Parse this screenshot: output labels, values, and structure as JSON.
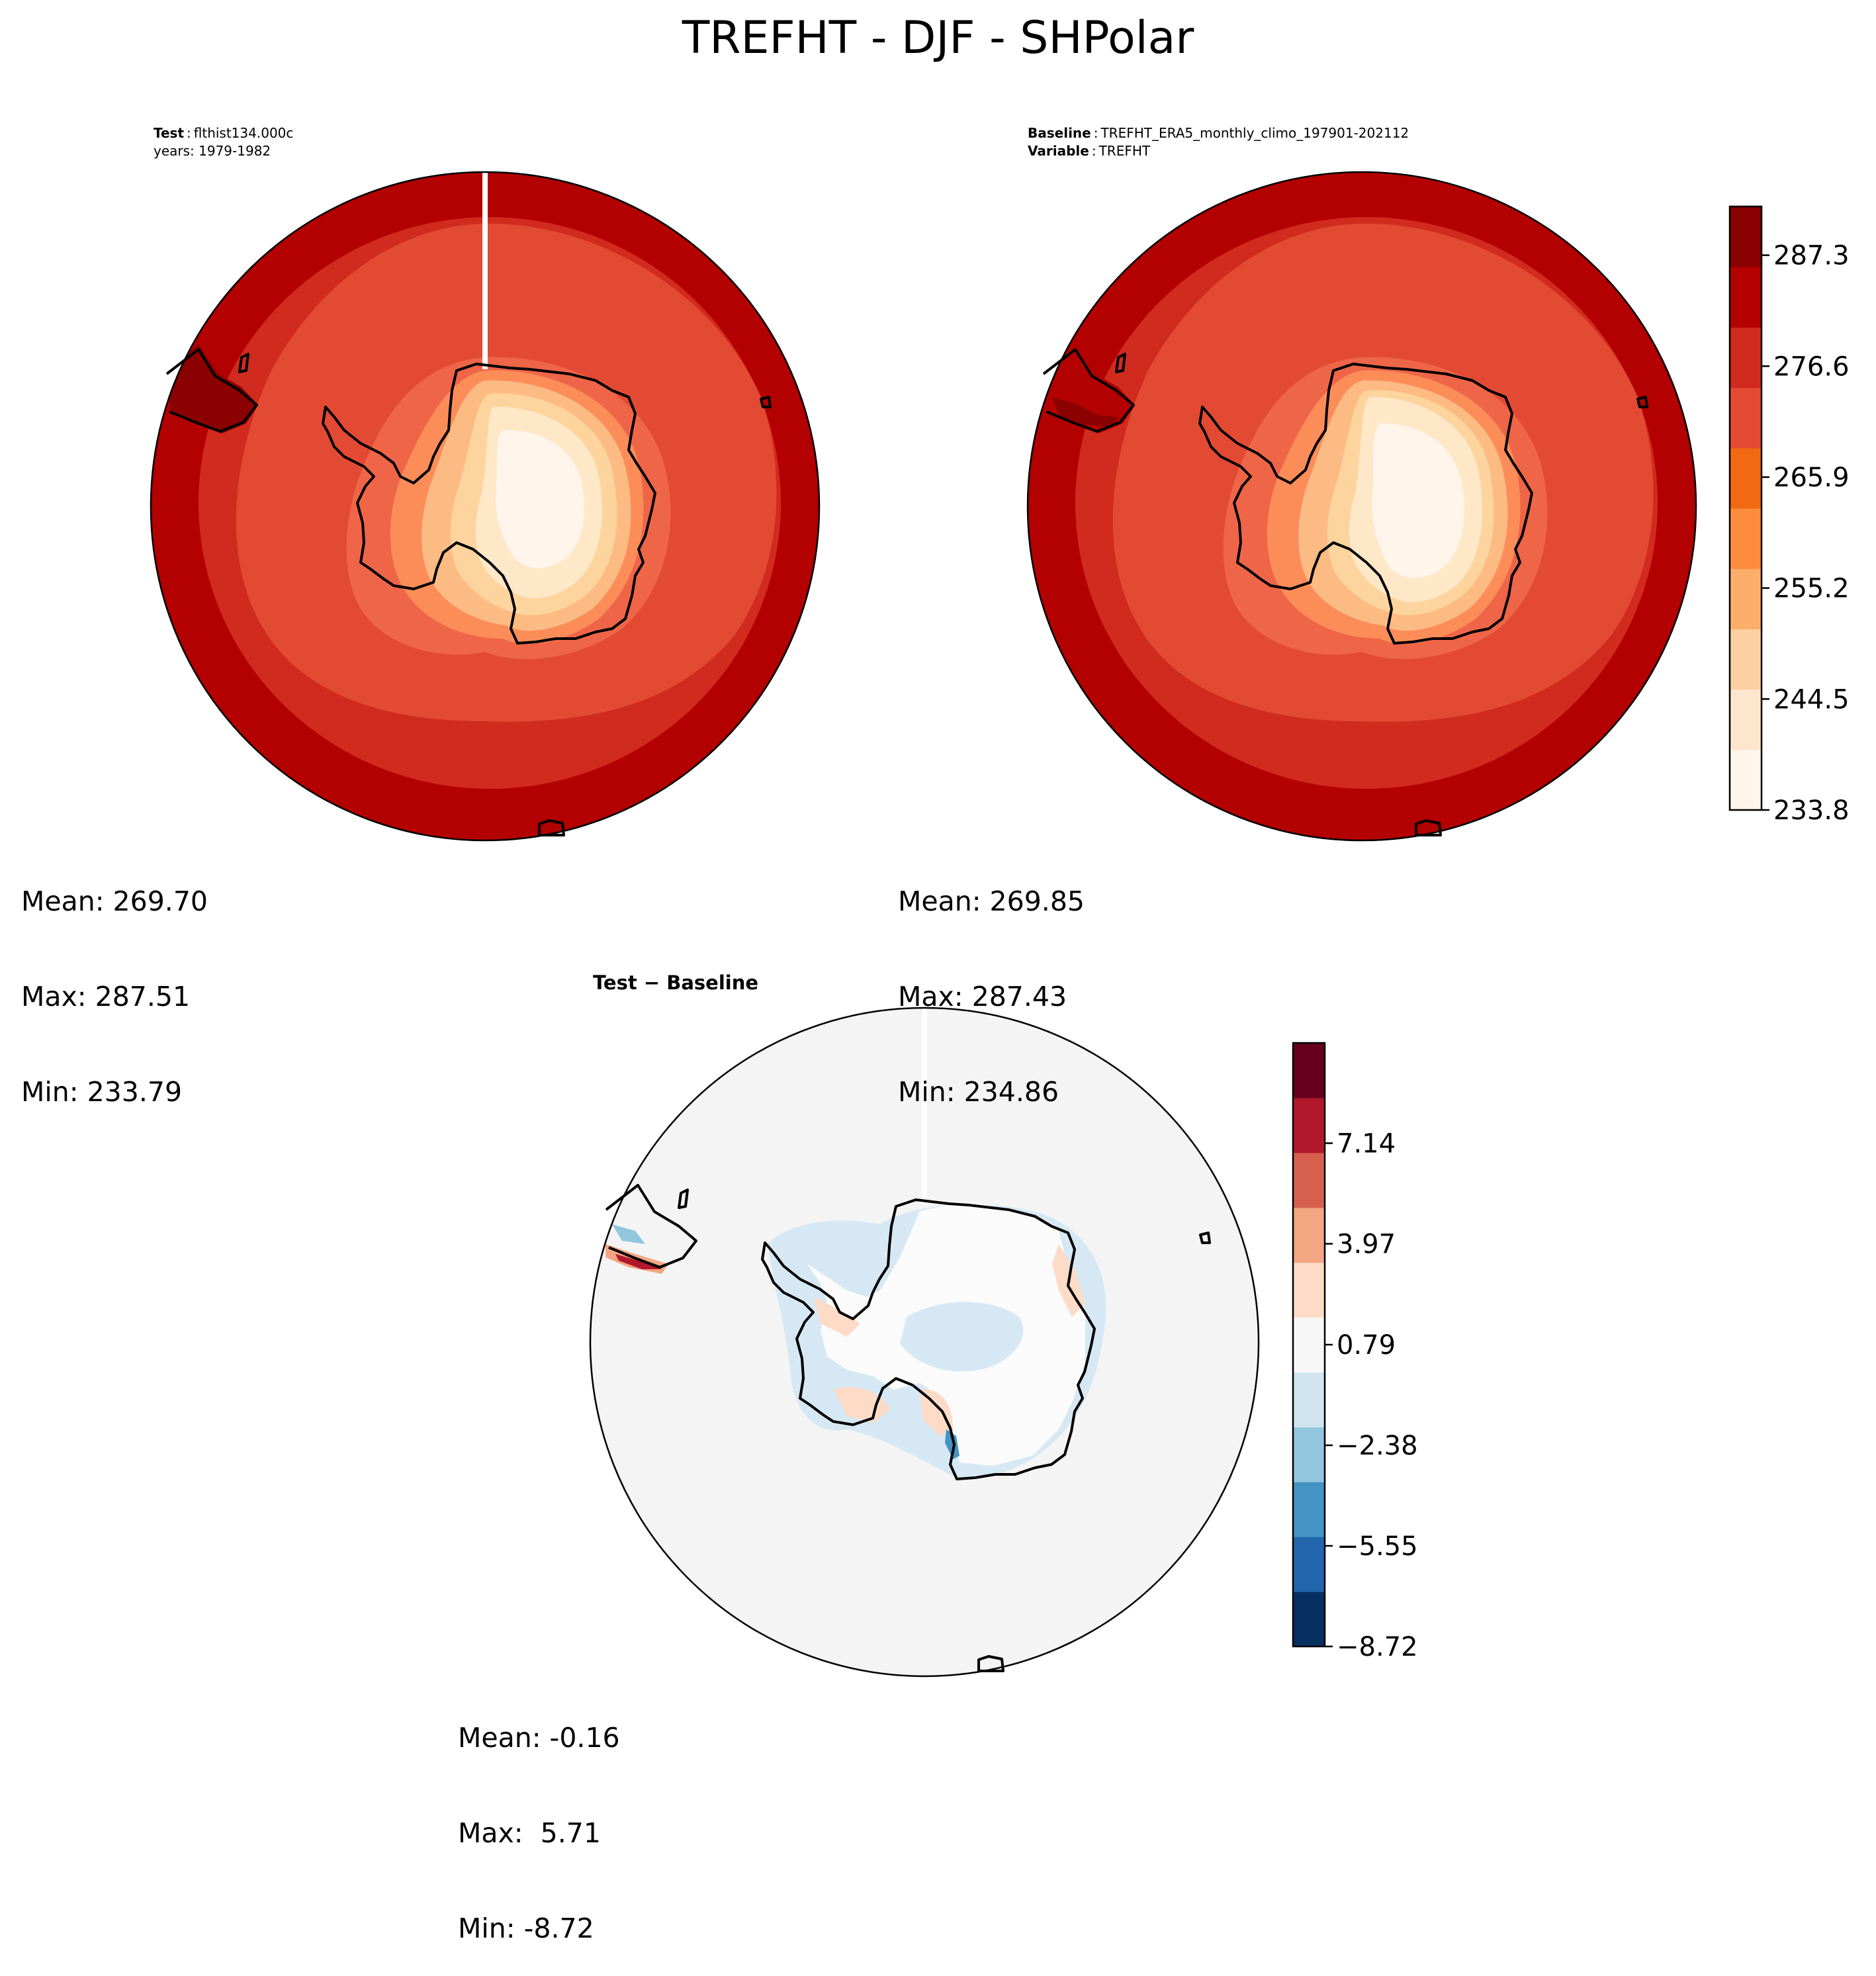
{
  "figure": {
    "title": "TREFHT - DJF - SHPolar"
  },
  "panels": [
    {
      "id": "test",
      "header_lines": [
        {
          "label": "Test",
          "value": "flthist134.000c"
        },
        {
          "label": "",
          "value": "years: 1979-1982"
        }
      ],
      "stats": {
        "mean": "Mean: 269.70",
        "max": "Max: 287.51",
        "min": "Min: 233.79"
      }
    },
    {
      "id": "baseline",
      "header_lines": [
        {
          "label": "Baseline",
          "value": "TREFHT_ERA5_monthly_climo_197901-202112"
        },
        {
          "label": "Variable",
          "value": "TREFHT"
        }
      ],
      "stats": {
        "mean": "Mean: 269.85",
        "max": "Max: 287.43",
        "min": "Min: 234.86"
      }
    },
    {
      "id": "diff",
      "header_lines": [
        {
          "label": "Test − Baseline",
          "value": ""
        }
      ],
      "stats": {
        "mean": "Mean: -0.16",
        "max": "Max:  5.71",
        "min": "Min: -8.72"
      }
    }
  ],
  "colors": {
    "abs_levels": [
      "#fff5eb",
      "#fee6ce",
      "#fdd0a2",
      "#fdae6b",
      "#fd8d3c",
      "#f16913",
      "#e34a33",
      "#d12a1e",
      "#b50000",
      "#8b0000"
    ],
    "abs_rings": [
      "#b30000",
      "#d12a1e",
      "#e34a33",
      "#ef6548",
      "#fc8d59",
      "#fdbb84",
      "#fdd49e",
      "#fee8c8",
      "#fff5eb"
    ],
    "diff_levels": [
      "#053061",
      "#2166ac",
      "#4393c3",
      "#92c5de",
      "#d1e5f0",
      "#f7f7f7",
      "#fddbc7",
      "#f4a582",
      "#d6604d",
      "#b2182b",
      "#67001f"
    ],
    "diff_background": "#f4f4f4"
  },
  "chart_data": [
    {
      "type": "heatmap",
      "name": "Test",
      "projection": "south polar stereographic",
      "variable": "TREFHT",
      "season": "DJF",
      "region": "SHPolar",
      "mean": 269.7,
      "max": 287.51,
      "min": 233.79
    },
    {
      "type": "heatmap",
      "name": "Baseline",
      "projection": "south polar stereographic",
      "variable": "TREFHT",
      "mean": 269.85,
      "max": 287.43,
      "min": 234.86,
      "colorbar": {
        "ticks": [
          233.8,
          244.5,
          255.2,
          265.9,
          276.6,
          287.3
        ],
        "tick_labels": [
          "233.8",
          "244.5",
          "255.2",
          "265.9",
          "276.6",
          "287.3"
        ],
        "range": [
          233.8,
          292.0
        ],
        "levels": 11
      }
    },
    {
      "type": "heatmap",
      "name": "Test − Baseline",
      "projection": "south polar stereographic",
      "mean": -0.16,
      "max": 5.71,
      "min": -8.72,
      "colorbar": {
        "ticks": [
          -8.72,
          -5.55,
          -2.38,
          0.79,
          3.97,
          7.14
        ],
        "tick_labels": [
          "−8.72",
          "−5.55",
          "−2.38",
          "0.79",
          "3.97",
          "7.14"
        ],
        "range": [
          -8.72,
          10.3
        ],
        "levels": 12
      }
    }
  ]
}
